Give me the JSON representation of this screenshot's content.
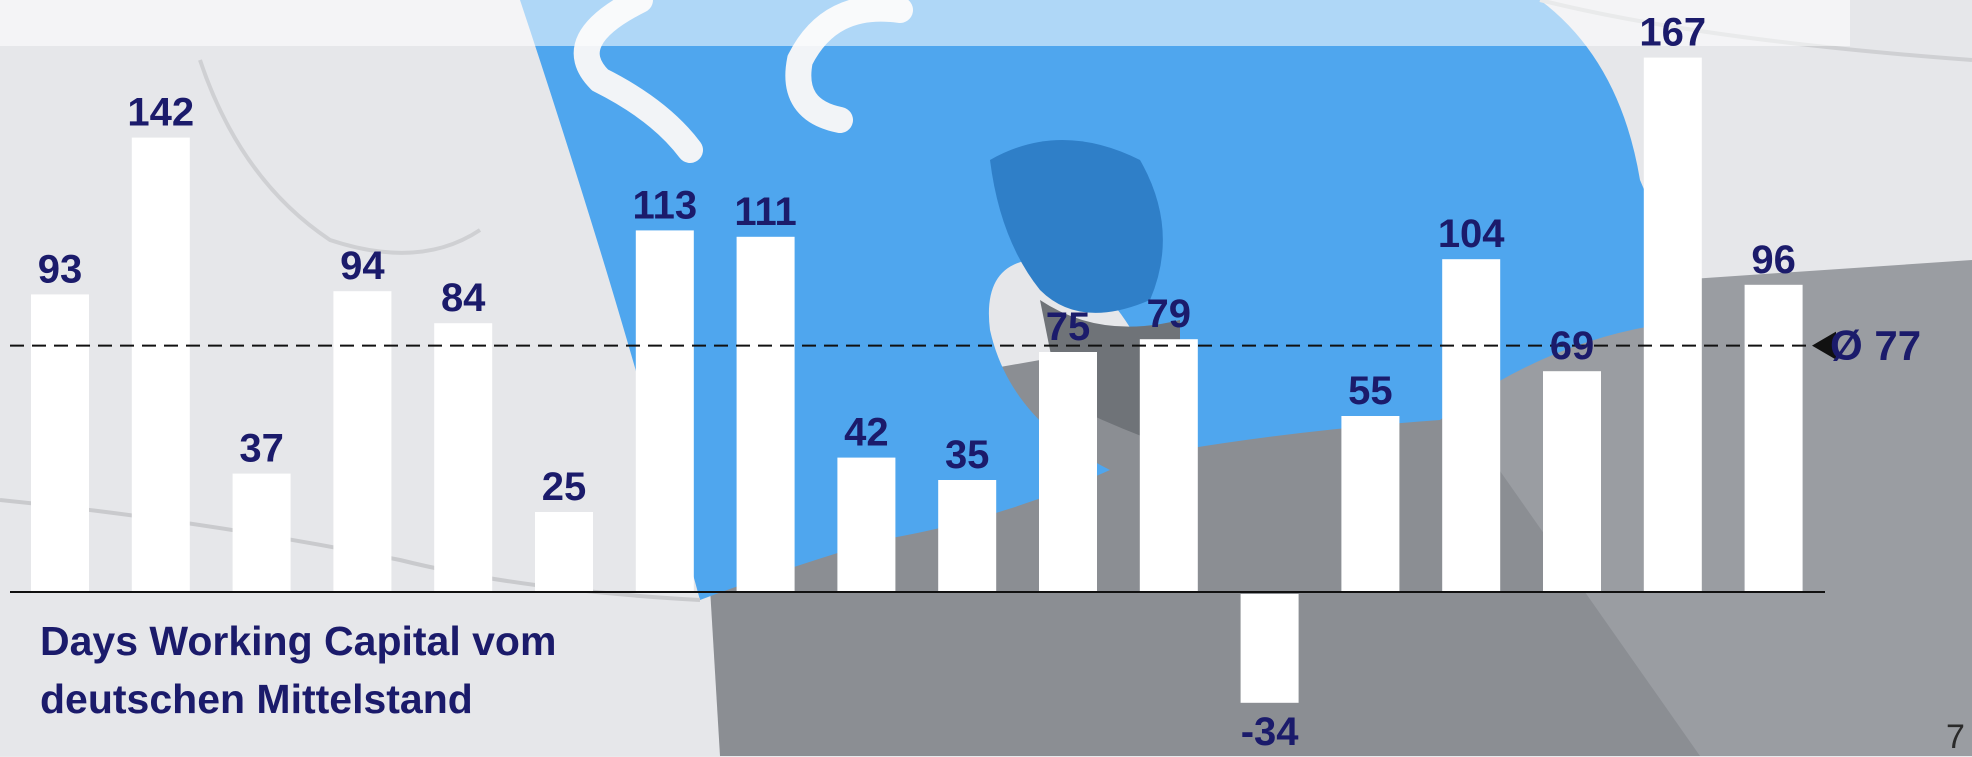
{
  "title_lines": [
    "Days Working Capital vom",
    "deutschen Mittelstand"
  ],
  "average_label": "Ø 77",
  "page_number": "7",
  "colors": {
    "bar": "#ffffff",
    "label": "#1b1b6b",
    "label_highlight": "#8a8fbf",
    "puzzle_blue": "#4fa6ee"
  },
  "chart_data": {
    "type": "bar",
    "categories": [
      "",
      "",
      "",
      "",
      "",
      "",
      "",
      "",
      "",
      "",
      "",
      "",
      "",
      "",
      "",
      "",
      "",
      ""
    ],
    "values": [
      93,
      142,
      37,
      94,
      84,
      25,
      113,
      111,
      42,
      35,
      75,
      79,
      -34,
      55,
      104,
      69,
      167,
      96
    ],
    "average": 77,
    "title": "Days Working Capital vom deutschen Mittelstand",
    "xlabel": "",
    "ylabel": "",
    "ylim": [
      -34,
      167
    ],
    "grid": false
  }
}
